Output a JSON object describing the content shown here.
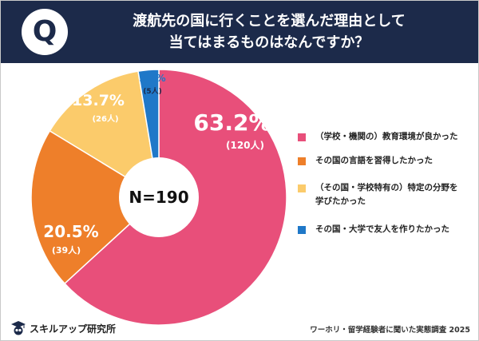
{
  "header": {
    "badge": "Q",
    "title_line1": "渡航先の国に行くことを選んだ理由として",
    "title_line2": "当てはまるものはなんですか？"
  },
  "chart_data": {
    "type": "pie",
    "donut": true,
    "center_label": "N=190",
    "start_angle_deg": 0,
    "direction": "clockwise",
    "slices": [
      {
        "label": "（学校・機関の）教育環境が良かった",
        "percent": 63.2,
        "percent_label": "63.2%",
        "count_label": "(120人)",
        "color": "#e84f7a"
      },
      {
        "label": "その国の言語を習得したかった",
        "percent": 20.5,
        "percent_label": "20.5%",
        "count_label": "(39人)",
        "color": "#ee7f2a"
      },
      {
        "label": "（その国・学校特有の）特定の分野を学びたかった",
        "percent": 13.7,
        "percent_label": "13.7%",
        "count_label": "(26人)",
        "color": "#fbcb6b"
      },
      {
        "label": "その国・大学で友人を作りたかった",
        "percent": 2.6,
        "percent_label": "2.6%",
        "count_label": "(5人)",
        "color": "#1f78c8"
      }
    ]
  },
  "legend": {
    "items": [
      {
        "line1": "（学校・機関の）教育環境が良かった",
        "line2": ""
      },
      {
        "line1": "その国の言語を習得したかった",
        "line2": ""
      },
      {
        "line1": "（その国・学校特有の）特定の分野を",
        "line2": "学びたかった"
      },
      {
        "line1": "その国・大学で友人を作りたかった",
        "line2": ""
      }
    ]
  },
  "footer": {
    "brand": "スキルアップ研究所",
    "brand_icon": "graduation-cap-owl-icon",
    "source": "ワーホリ・留学経験者に聞いた実態調査 2025"
  }
}
